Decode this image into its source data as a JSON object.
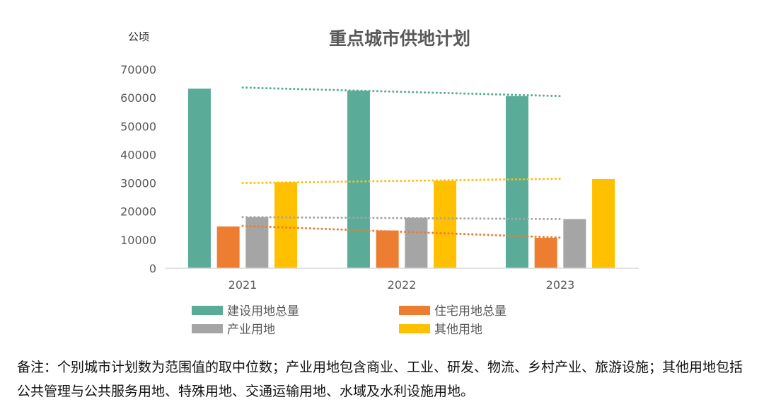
{
  "chart_data": {
    "type": "bar",
    "title": "重点城市供地计划",
    "ylabel": "公顷",
    "xlabel": "",
    "categories": [
      "2021",
      "2022",
      "2023"
    ],
    "ylim": [
      0,
      70000
    ],
    "yticks": [
      0,
      10000,
      20000,
      30000,
      40000,
      50000,
      60000,
      70000
    ],
    "grid": false,
    "legend_position": "bottom",
    "series": [
      {
        "name": "建设用地总量",
        "color": "#5aab98",
        "values": [
          63200,
          62500,
          60600
        ]
      },
      {
        "name": "住宅用地总量",
        "color": "#ed7d31",
        "values": [
          14700,
          13300,
          10700
        ]
      },
      {
        "name": "产业用地",
        "color": "#a5a5a5",
        "values": [
          18000,
          17800,
          17300
        ]
      },
      {
        "name": "其他用地",
        "color": "#ffc000",
        "values": [
          30300,
          30800,
          31400
        ]
      }
    ],
    "trendlines": [
      {
        "series": "建设用地总量",
        "style": "dotted",
        "start": 63600,
        "end": 60600
      },
      {
        "series": "住宅用地总量",
        "style": "dotted",
        "start": 14900,
        "end": 10800
      },
      {
        "series": "产业用地",
        "style": "dotted",
        "start": 18000,
        "end": 17300
      },
      {
        "series": "其他用地",
        "style": "dotted",
        "start": 30000,
        "end": 31500
      }
    ]
  },
  "note": {
    "text": "备注：个别城市计划数为范围值的取中位数；产业用地包含商业、工业、研发、物流、乡村产业、旅游设施；其他用地包括公共管理与公共服务用地、特殊用地、交通运输用地、水域及水利设施用地。"
  }
}
